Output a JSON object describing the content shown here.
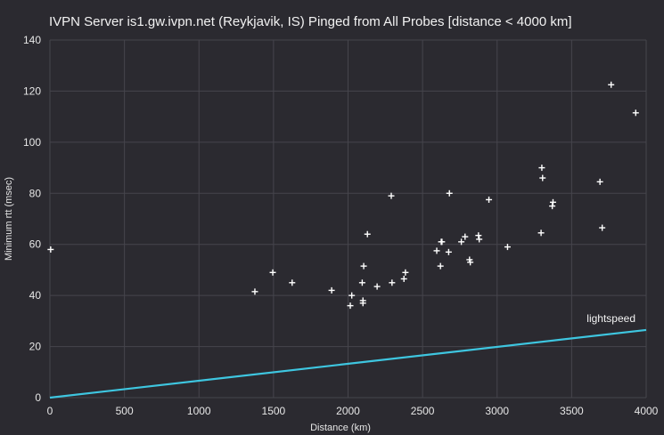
{
  "chart_data": {
    "type": "scatter",
    "title": "IVPN Server is1.gw.ivpn.net (Reykjavik, IS) Pinged from All Probes [distance < 4000 km]",
    "xlabel": "Distance (km)",
    "ylabel": "Minimum rtt (msec)",
    "xlim": [
      0,
      4000
    ],
    "ylim": [
      0,
      140
    ],
    "xticks": [
      "0",
      "500",
      "1000",
      "1500",
      "2000",
      "2500",
      "3000",
      "3500",
      "4000"
    ],
    "yticks": [
      "0",
      "20",
      "40",
      "60",
      "80",
      "100",
      "120",
      "140"
    ],
    "grid": true,
    "series": [
      {
        "type": "scatter",
        "color": "#ffffff",
        "marker": "plus",
        "points": [
          [
            5,
            58
          ],
          [
            1375,
            41.5
          ],
          [
            1495,
            49
          ],
          [
            1625,
            45
          ],
          [
            1890,
            42
          ],
          [
            2015,
            36
          ],
          [
            2025,
            40
          ],
          [
            2095,
            45
          ],
          [
            2100,
            37
          ],
          [
            2100,
            38
          ],
          [
            2105,
            51.5
          ],
          [
            2130,
            64
          ],
          [
            2195,
            43.5
          ],
          [
            2290,
            79
          ],
          [
            2295,
            45
          ],
          [
            2375,
            46.5
          ],
          [
            2385,
            49
          ],
          [
            2595,
            57.5
          ],
          [
            2620,
            51.5
          ],
          [
            2625,
            61
          ],
          [
            2630,
            61
          ],
          [
            2675,
            57
          ],
          [
            2680,
            80
          ],
          [
            2760,
            61
          ],
          [
            2785,
            63
          ],
          [
            2815,
            54
          ],
          [
            2820,
            53
          ],
          [
            2875,
            63.5
          ],
          [
            2880,
            62
          ],
          [
            2945,
            77.5
          ],
          [
            3070,
            59
          ],
          [
            3295,
            64.5
          ],
          [
            3300,
            90
          ],
          [
            3305,
            86
          ],
          [
            3370,
            75
          ],
          [
            3375,
            76.5
          ],
          [
            3690,
            84.5
          ],
          [
            3705,
            66.5
          ],
          [
            3765,
            122.5
          ],
          [
            3930,
            111.5
          ]
        ]
      },
      {
        "type": "line",
        "color": "#3ec6e0",
        "x": [
          0,
          4000
        ],
        "y": [
          0,
          26.5
        ],
        "label": "lightspeed"
      }
    ]
  }
}
